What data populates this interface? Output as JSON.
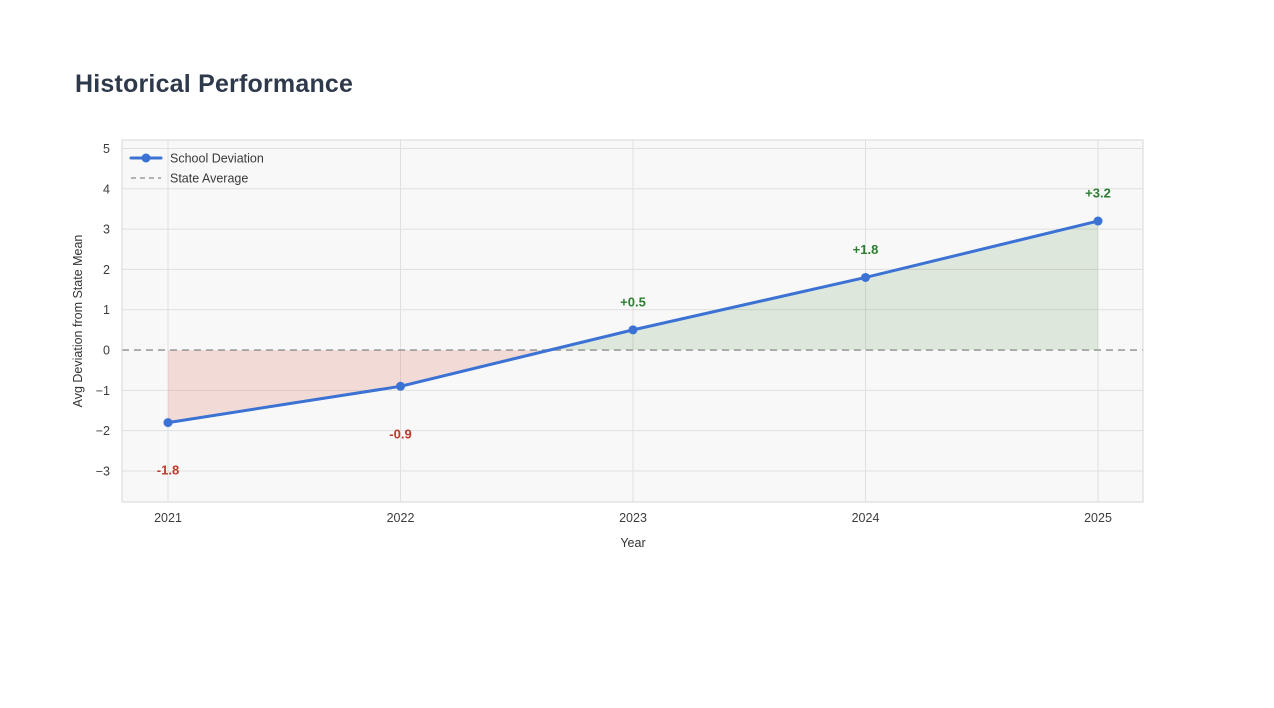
{
  "page": {
    "background": "#ffffff",
    "title": "Historical Performance"
  },
  "chart_data": {
    "type": "line",
    "title": "Historical Performance",
    "xlabel": "Year",
    "ylabel": "Avg Deviation from State Mean",
    "x": [
      2021,
      2022,
      2023,
      2024,
      2025
    ],
    "xtick_labels": [
      "2021",
      "2022",
      "2023",
      "2024",
      "2025"
    ],
    "series": [
      {
        "name": "School Deviation",
        "values": [
          -1.8,
          -0.9,
          0.5,
          1.8,
          3.2
        ]
      }
    ],
    "reference_line": {
      "name": "State Average",
      "value": 0
    },
    "point_labels": [
      {
        "text": "-1.8",
        "position": "below"
      },
      {
        "text": "-0.9",
        "position": "below"
      },
      {
        "text": "+0.5",
        "position": "above"
      },
      {
        "text": "+1.8",
        "position": "above"
      },
      {
        "text": "+3.2",
        "position": "above"
      }
    ],
    "yticks": [
      -3,
      -2,
      -1,
      0,
      1,
      2,
      3,
      4,
      5
    ],
    "ytick_labels": [
      "−3",
      "−2",
      "−1",
      "0",
      "1",
      "2",
      "3",
      "4",
      "5"
    ],
    "ylim": [
      -3.77,
      5.21
    ],
    "grid": true,
    "legend": {
      "position": "top-left",
      "entries": [
        "School Deviation",
        "State Average"
      ]
    },
    "colors": {
      "line": "#3b72d4",
      "reference": "#9c9c9c",
      "positive_fill": "rgba(62,125,50,0.14)",
      "negative_fill": "rgba(214,80,45,0.17)",
      "positive_label": "#2e7d32",
      "negative_label": "#c0392b",
      "title": "#2e3a4c",
      "tick_text": "#3c3c3c",
      "axis_title_text": "#333333",
      "legend_text": "#3a3a3a",
      "plot_bg": "#f8f8f8",
      "grid_line": "#e0e0e0",
      "border": "#d7d7d7"
    }
  }
}
